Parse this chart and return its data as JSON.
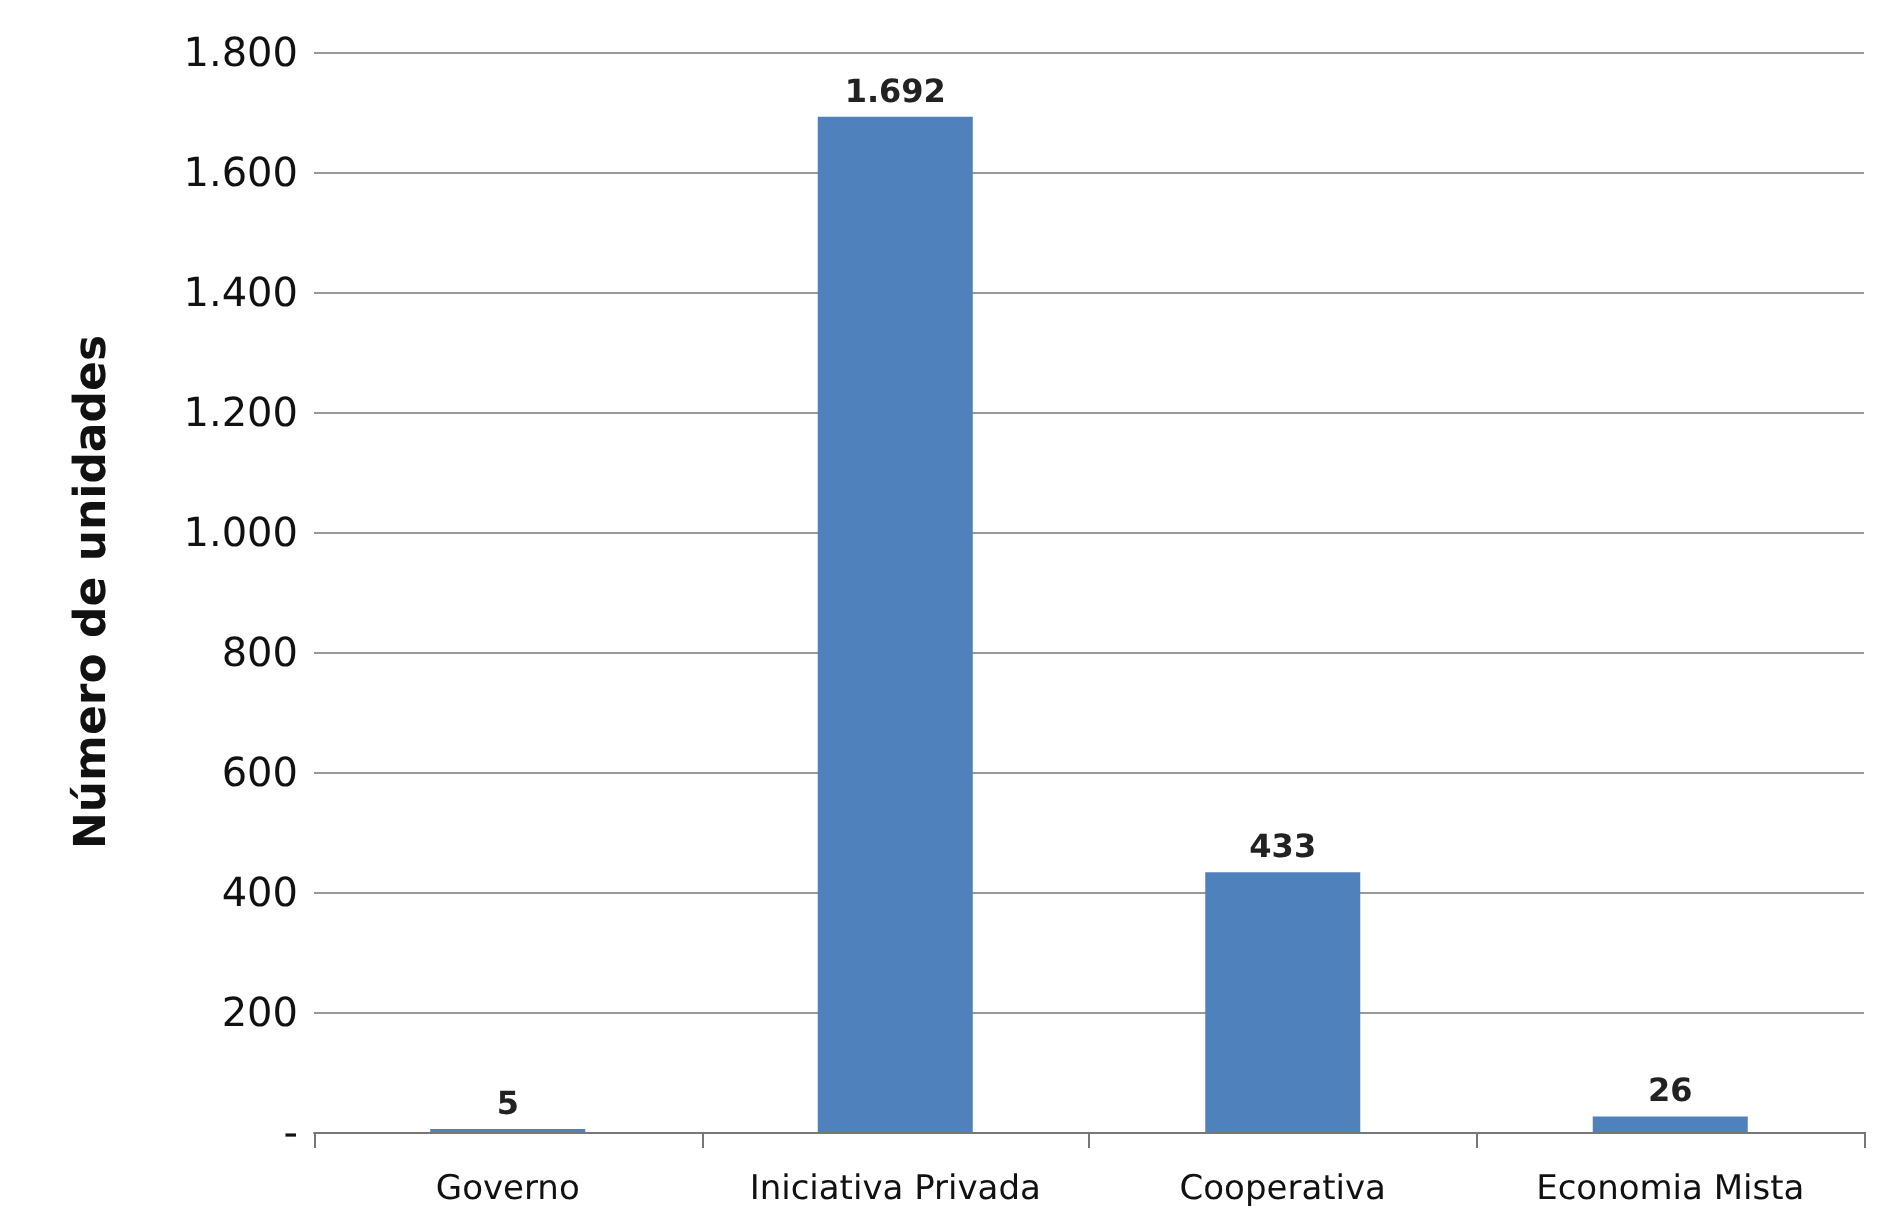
{
  "chart_data": {
    "type": "bar",
    "ylabel": "Número de unidades",
    "categories": [
      "Governo",
      "Iniciativa Privada",
      "Cooperativa",
      "Economia Mista"
    ],
    "values": [
      5,
      1692,
      433,
      26
    ],
    "color": "#4f81bd",
    "value_labels": [
      "5",
      "1.692",
      "433",
      "26"
    ],
    "ylim": [
      0,
      1800
    ],
    "yticks": [
      {
        "value": 0,
        "label": "-"
      },
      200,
      400,
      600,
      800,
      {
        "value": 1000,
        "label": "1.000"
      },
      {
        "value": 1200,
        "label": "1.200"
      },
      {
        "value": 1400,
        "label": "1.400"
      },
      {
        "value": 1600,
        "label": "1.600"
      },
      {
        "value": 1800,
        "label": "1.800"
      }
    ],
    "grid": "y"
  }
}
